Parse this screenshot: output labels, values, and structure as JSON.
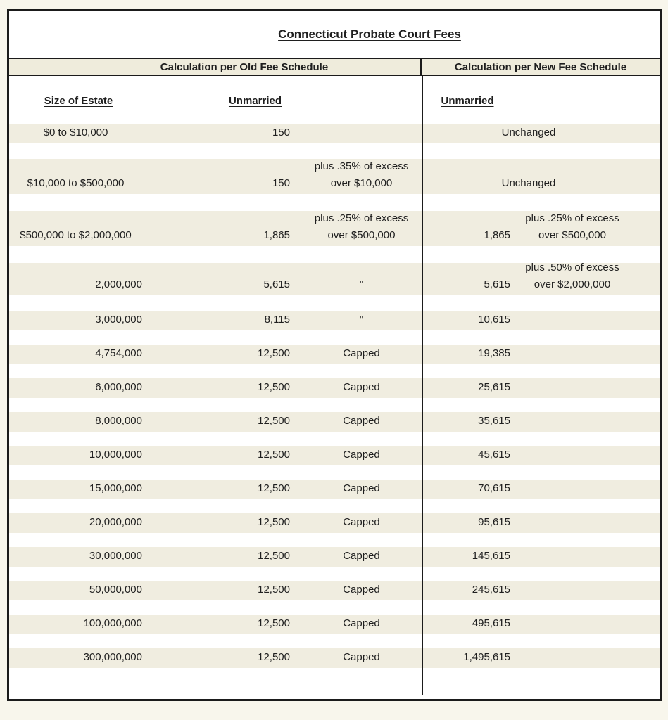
{
  "title": "Connecticut Probate Court Fees",
  "panes": {
    "old": {
      "header": "Calculation per Old Fee Schedule",
      "size_column_header": "Size of Estate",
      "status_column_header": "Unmarried"
    },
    "new": {
      "header": "Calculation per New Fee Schedule",
      "status_column_header": "Unmarried"
    }
  },
  "colors": {
    "stripe": "#f0ede0",
    "band": "#efecdc",
    "border": "#1b1b1b",
    "page_background": "#f8f6ec",
    "text": "#1f1f1f"
  },
  "rows": [
    {
      "size": "$0 to $10,000",
      "size_align": "center",
      "old_amount": "150",
      "old_note_top": "",
      "old_note_bottom": "",
      "new_merged": "Unchanged",
      "new_amount": "",
      "new_note_top": "",
      "new_note_bottom": ""
    },
    {
      "size": "$10,000 to $500,000",
      "size_align": "center",
      "old_amount": "150",
      "old_note_top": "plus .35% of excess",
      "old_note_bottom": "over $10,000",
      "new_merged": "Unchanged",
      "new_amount": "",
      "new_note_top": "",
      "new_note_bottom": ""
    },
    {
      "size": "$500,000 to $2,000,000",
      "size_align": "center",
      "old_amount": "1,865",
      "old_note_top": "plus .25% of excess",
      "old_note_bottom": "over $500,000",
      "new_merged": null,
      "new_amount": "1,865",
      "new_note_top": "plus .25% of excess",
      "new_note_bottom": "over $500,000"
    },
    {
      "size": "2,000,000",
      "size_align": "right",
      "old_amount": "5,615",
      "old_note_top": "",
      "old_note_bottom": "\"",
      "new_merged": null,
      "new_amount": "5,615",
      "new_note_top": "plus .50% of excess",
      "new_note_bottom": "over $2,000,000"
    },
    {
      "size": "3,000,000",
      "size_align": "right",
      "old_amount": "8,115",
      "old_note_top": "",
      "old_note_bottom": "\"",
      "new_merged": null,
      "new_amount": "10,615",
      "new_note_top": "",
      "new_note_bottom": ""
    },
    {
      "size": "4,754,000",
      "size_align": "right",
      "old_amount": "12,500",
      "old_note_top": "",
      "old_note_bottom": "Capped",
      "new_merged": null,
      "new_amount": "19,385",
      "new_note_top": "",
      "new_note_bottom": ""
    },
    {
      "size": "6,000,000",
      "size_align": "right",
      "old_amount": "12,500",
      "old_note_top": "",
      "old_note_bottom": "Capped",
      "new_merged": null,
      "new_amount": "25,615",
      "new_note_top": "",
      "new_note_bottom": ""
    },
    {
      "size": "8,000,000",
      "size_align": "right",
      "old_amount": "12,500",
      "old_note_top": "",
      "old_note_bottom": "Capped",
      "new_merged": null,
      "new_amount": "35,615",
      "new_note_top": "",
      "new_note_bottom": ""
    },
    {
      "size": "10,000,000",
      "size_align": "right",
      "old_amount": "12,500",
      "old_note_top": "",
      "old_note_bottom": "Capped",
      "new_merged": null,
      "new_amount": "45,615",
      "new_note_top": "",
      "new_note_bottom": ""
    },
    {
      "size": "15,000,000",
      "size_align": "right",
      "old_amount": "12,500",
      "old_note_top": "",
      "old_note_bottom": "Capped",
      "new_merged": null,
      "new_amount": "70,615",
      "new_note_top": "",
      "new_note_bottom": ""
    },
    {
      "size": "20,000,000",
      "size_align": "right",
      "old_amount": "12,500",
      "old_note_top": "",
      "old_note_bottom": "Capped",
      "new_merged": null,
      "new_amount": "95,615",
      "new_note_top": "",
      "new_note_bottom": ""
    },
    {
      "size": "30,000,000",
      "size_align": "right",
      "old_amount": "12,500",
      "old_note_top": "",
      "old_note_bottom": "Capped",
      "new_merged": null,
      "new_amount": "145,615",
      "new_note_top": "",
      "new_note_bottom": ""
    },
    {
      "size": "50,000,000",
      "size_align": "right",
      "old_amount": "12,500",
      "old_note_top": "",
      "old_note_bottom": "Capped",
      "new_merged": null,
      "new_amount": "245,615",
      "new_note_top": "",
      "new_note_bottom": ""
    },
    {
      "size": "100,000,000",
      "size_align": "right",
      "old_amount": "12,500",
      "old_note_top": "",
      "old_note_bottom": "Capped",
      "new_merged": null,
      "new_amount": "495,615",
      "new_note_top": "",
      "new_note_bottom": ""
    },
    {
      "size": "300,000,000",
      "size_align": "right",
      "old_amount": "12,500",
      "old_note_top": "",
      "old_note_bottom": "Capped",
      "new_merged": null,
      "new_amount": "1,495,615",
      "new_note_top": "",
      "new_note_bottom": ""
    }
  ]
}
